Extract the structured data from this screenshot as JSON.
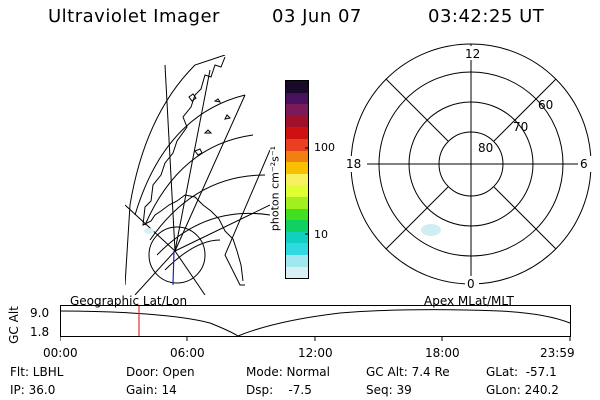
{
  "header": {
    "title": "Ultraviolet Imager",
    "date": "03 Jun 07",
    "time": "03:42:25 UT"
  },
  "colorbar": {
    "label": "photon cm⁻²s⁻¹",
    "ticks": [
      "100",
      "10"
    ],
    "colors": [
      "#1a0a2a",
      "#4a1060",
      "#7a1a5a",
      "#a0102a",
      "#d01010",
      "#e84020",
      "#f08010",
      "#f8c000",
      "#f8f060",
      "#e0ff30",
      "#a0f020",
      "#40e020",
      "#10d060",
      "#10d0c0",
      "#30d8e0",
      "#a0e8f0",
      "#d8f0f4"
    ]
  },
  "polar": {
    "mlt_labels": {
      "top": "12",
      "left": "18",
      "right": "6",
      "bottom": "0"
    },
    "lat_labels": [
      "60",
      "70",
      "80"
    ]
  },
  "timeline": {
    "left_label": "Geographic Lat/Lon",
    "right_label": "Apex MLat/MLT",
    "axis_label": "GC Alt",
    "alt_max": "9.0",
    "alt_min": "1.8",
    "ticks": [
      "00:00",
      "06:00",
      "12:00",
      "18:00",
      "23:59"
    ]
  },
  "info": {
    "flt": "Flt: LBHL",
    "ip": "IP: 36.0",
    "door": "Door: Open",
    "gain": "Gain: 14",
    "mode": "Mode: Normal",
    "dsp": "Dsp:    -7.5",
    "gc_alt": "GC Alt: 7.4 Re",
    "seq": "Seq: 39",
    "glat": "GLat:  -57.1",
    "glon": "GLon: 240.2"
  }
}
